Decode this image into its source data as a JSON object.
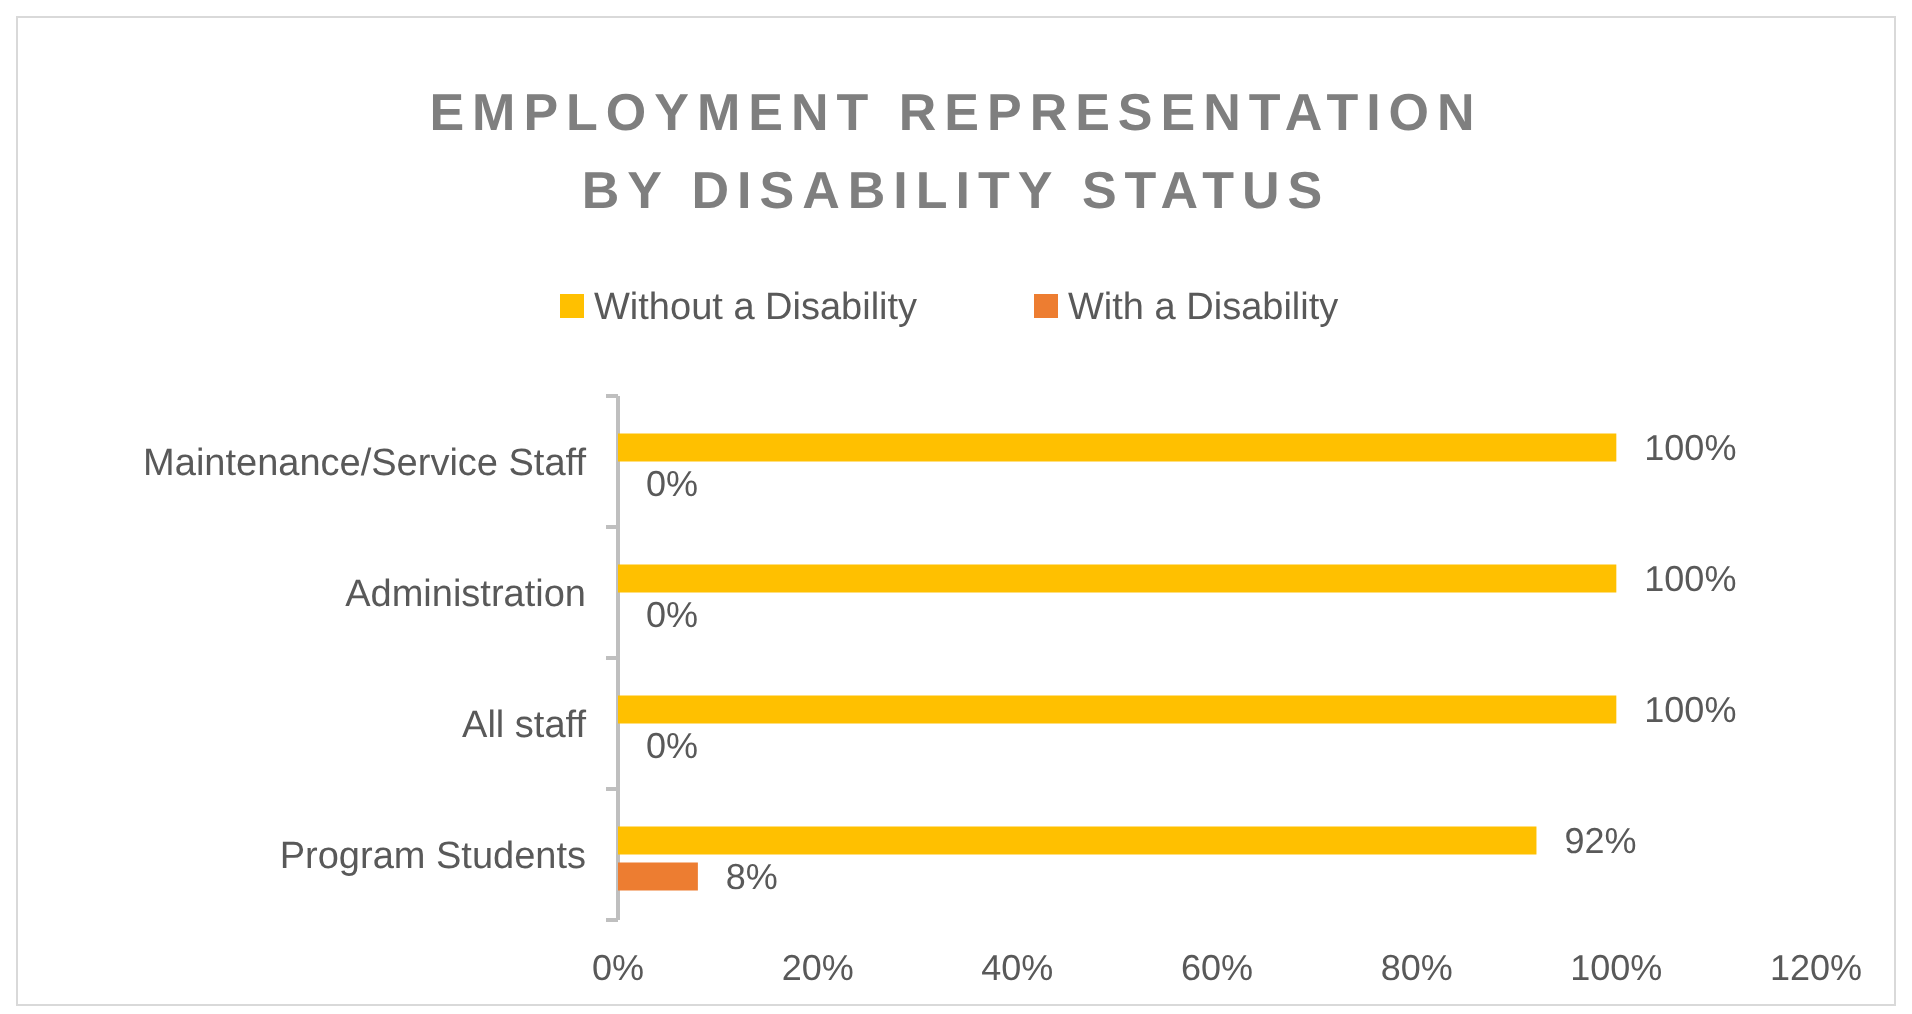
{
  "chart_data": {
    "type": "bar",
    "orientation": "horizontal",
    "title": "EMPLOYMENT REPRESENTATION BY DISABILITY STATUS",
    "categories": [
      "Maintenance/Service Staff",
      "Administration",
      "All staff",
      "Program Students"
    ],
    "series": [
      {
        "name": "Without a Disability",
        "color": "#ffc000",
        "values": [
          100,
          100,
          100,
          92
        ],
        "value_labels": [
          "100%",
          "100%",
          "100%",
          "92%"
        ]
      },
      {
        "name": "With a Disability",
        "color": "#ed7d31",
        "values": [
          0,
          0,
          0,
          8
        ],
        "value_labels": [
          "0%",
          "0%",
          "0%",
          "8%"
        ]
      }
    ],
    "xlim": [
      0,
      120
    ],
    "xticks": [
      {
        "value": 0,
        "label": "0%"
      },
      {
        "value": 20,
        "label": "20%"
      },
      {
        "value": 40,
        "label": "40%"
      },
      {
        "value": 60,
        "label": "60%"
      },
      {
        "value": 80,
        "label": "80%"
      },
      {
        "value": 100,
        "label": "100%"
      },
      {
        "value": 120,
        "label": "120%"
      }
    ],
    "grid": false,
    "legend": "top"
  }
}
